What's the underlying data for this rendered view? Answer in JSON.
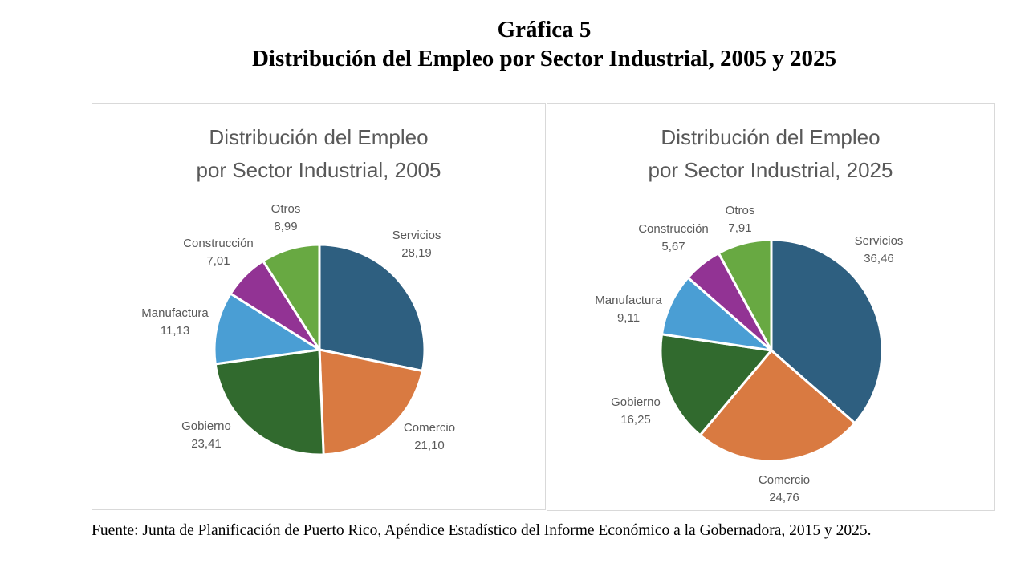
{
  "figure": {
    "label": "Gráfica 5",
    "title": "Distribución del Empleo por Sector Industrial, 2005 y 2025",
    "source": "Fuente: Junta de Planificación de Puerto Rico, Apéndice Estadístico del Informe Económico a la Gobernadora, 2015 y 2025."
  },
  "chart_data": [
    {
      "type": "pie",
      "title_lines": [
        "Distribución del Empleo",
        "por Sector Industrial, 2005"
      ],
      "value_format": "comma-decimal",
      "slices": [
        {
          "name": "Servicios",
          "value": 28.19,
          "value_label": "28,19",
          "color": "#2E5F80"
        },
        {
          "name": "Comercio",
          "value": 21.1,
          "value_label": "21,10",
          "color": "#D97A41"
        },
        {
          "name": "Gobierno",
          "value": 23.41,
          "value_label": "23,41",
          "color": "#316A2E"
        },
        {
          "name": "Manufactura",
          "value": 11.13,
          "value_label": "11,13",
          "color": "#4A9ED4"
        },
        {
          "name": "Construcción",
          "value": 7.01,
          "value_label": "7,01",
          "color": "#923394"
        },
        {
          "name": "Otros",
          "value": 8.99,
          "value_label": "8,99",
          "color": "#68A942"
        }
      ]
    },
    {
      "type": "pie",
      "title_lines": [
        "Distribución del Empleo",
        "por Sector Industrial, 2025"
      ],
      "value_format": "comma-decimal",
      "slices": [
        {
          "name": "Servicios",
          "value": 36.46,
          "value_label": "36,46",
          "color": "#2E5F80"
        },
        {
          "name": "Comercio",
          "value": 24.76,
          "value_label": "24,76",
          "color": "#D97A41"
        },
        {
          "name": "Gobierno",
          "value": 16.25,
          "value_label": "16,25",
          "color": "#316A2E"
        },
        {
          "name": "Manufactura",
          "value": 9.11,
          "value_label": "9,11",
          "color": "#4A9ED4"
        },
        {
          "name": "Construcción",
          "value": 5.67,
          "value_label": "5,67",
          "color": "#923394"
        },
        {
          "name": "Otros",
          "value": 7.91,
          "value_label": "7,91",
          "color": "#68A942"
        }
      ]
    }
  ]
}
